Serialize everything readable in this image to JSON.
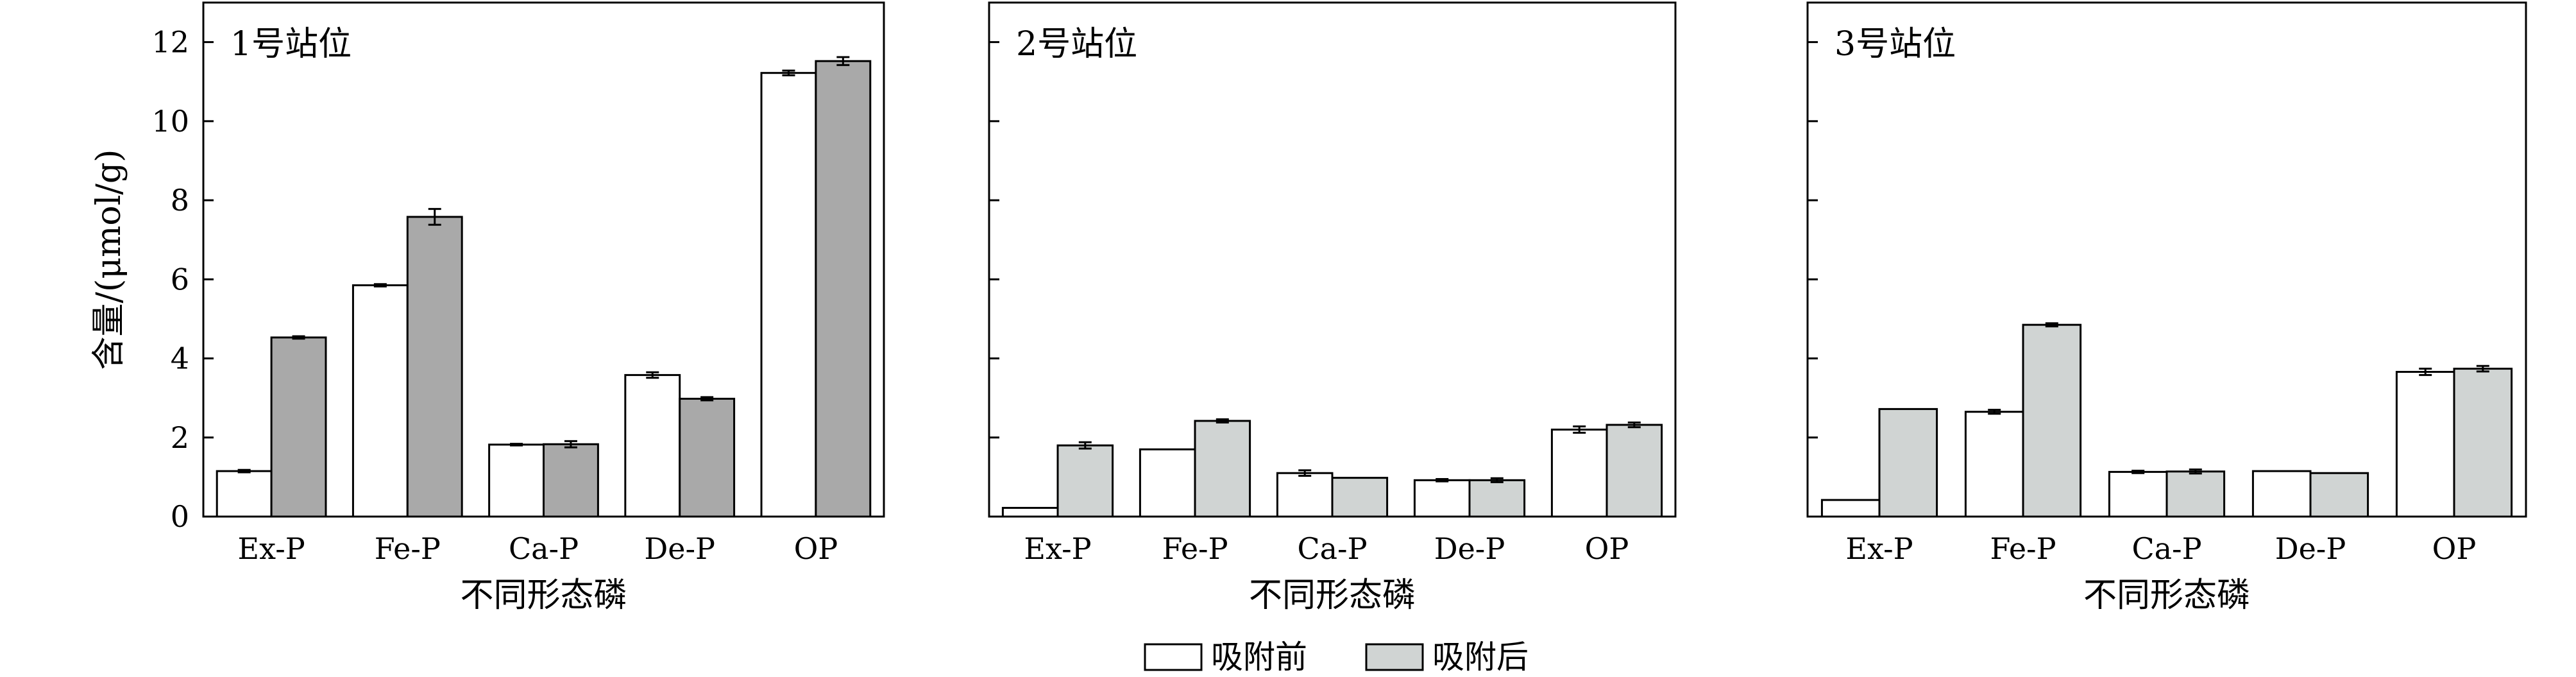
{
  "legend": {
    "before_label": "吸附前",
    "after_label": "吸附后"
  },
  "colors": {
    "before": "#ffffff",
    "after_station1": "#a9a9a9",
    "after_other": "#d0d4d3",
    "stroke": "#000000"
  },
  "chart_data": [
    {
      "type": "bar",
      "title": "1号站位",
      "xlabel": "不同形态磷",
      "ylabel": "含量/(μmol/g)",
      "ylim": [
        0,
        13
      ],
      "yticks": [
        0,
        2,
        4,
        6,
        8,
        10,
        12
      ],
      "show_tick_labels": true,
      "categories": [
        "Ex-P",
        "Fe-P",
        "Ca-P",
        "De-P",
        "OP"
      ],
      "series": [
        {
          "name": "吸附前",
          "values": [
            1.15,
            5.85,
            1.82,
            3.58,
            11.22
          ],
          "errors": [
            0.03,
            0.03,
            0.02,
            0.07,
            0.06
          ]
        },
        {
          "name": "吸附后",
          "values": [
            4.53,
            7.58,
            1.83,
            2.98,
            11.52
          ],
          "errors": [
            0.03,
            0.2,
            0.08,
            0.04,
            0.1
          ]
        }
      ]
    },
    {
      "type": "bar",
      "title": "2号站位",
      "xlabel": "不同形态磷",
      "ylabel": "",
      "ylim": [
        0,
        13
      ],
      "yticks": [
        0,
        2,
        4,
        6,
        8,
        10,
        12
      ],
      "show_tick_labels": false,
      "categories": [
        "Ex-P",
        "Fe-P",
        "Ca-P",
        "De-P",
        "OP"
      ],
      "series": [
        {
          "name": "吸附前",
          "values": [
            0.22,
            1.7,
            1.1,
            0.92,
            2.2
          ],
          "errors": [
            0.0,
            0.0,
            0.07,
            0.03,
            0.08
          ]
        },
        {
          "name": "吸附后",
          "values": [
            1.8,
            2.42,
            0.98,
            0.92,
            2.32
          ],
          "errors": [
            0.08,
            0.04,
            0.0,
            0.05,
            0.06
          ]
        }
      ]
    },
    {
      "type": "bar",
      "title": "3号站位",
      "xlabel": "不同形态磷",
      "ylabel": "",
      "ylim": [
        0,
        13
      ],
      "yticks": [
        0,
        2,
        4,
        6,
        8,
        10,
        12
      ],
      "show_tick_labels": false,
      "categories": [
        "Ex-P",
        "Fe-P",
        "Ca-P",
        "De-P",
        "OP"
      ],
      "series": [
        {
          "name": "吸附前",
          "values": [
            0.42,
            2.65,
            1.13,
            1.15,
            3.66
          ],
          "errors": [
            0.0,
            0.05,
            0.03,
            0.0,
            0.08
          ]
        },
        {
          "name": "吸附后",
          "values": [
            2.72,
            4.85,
            1.14,
            1.1,
            3.74
          ],
          "errors": [
            0.0,
            0.04,
            0.05,
            0.0,
            0.07
          ]
        }
      ]
    }
  ]
}
